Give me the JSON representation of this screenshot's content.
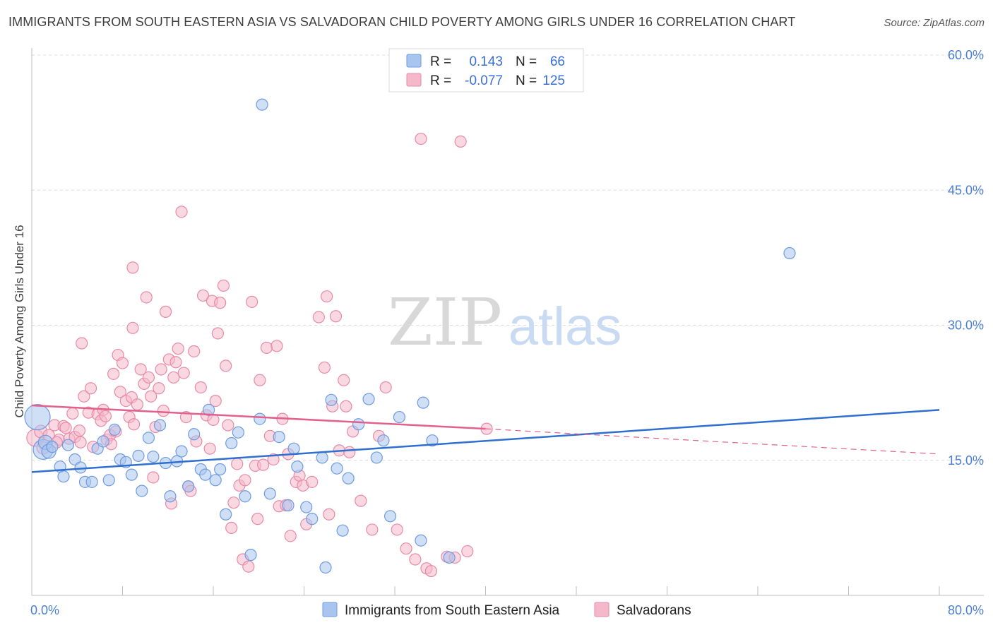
{
  "title": "IMMIGRANTS FROM SOUTH EASTERN ASIA VS SALVADORAN CHILD POVERTY AMONG GIRLS UNDER 16 CORRELATION CHART",
  "source": "Source: ZipAtlas.com",
  "watermark": {
    "zip": "ZIP",
    "atlas": "atlas"
  },
  "legend": {
    "rows": [
      {
        "r_label": "R =",
        "r_value": "0.143",
        "n_label": "N =",
        "n_value": "66",
        "color": "#a8c5ef",
        "stroke": "#6f9be0"
      },
      {
        "r_label": "R =",
        "r_value": "-0.077",
        "n_label": "N =",
        "n_value": "125",
        "color": "#f5b8cb",
        "stroke": "#e88aa8"
      }
    ]
  },
  "bottom_legend": {
    "items": [
      {
        "label": "Immigrants from South Eastern Asia",
        "color": "#a8c5ef",
        "stroke": "#6f9be0"
      },
      {
        "label": "Salvadorans",
        "color": "#f5b8cb",
        "stroke": "#e88aa8"
      }
    ]
  },
  "chart_data": {
    "type": "scatter",
    "title": "IMMIGRANTS FROM SOUTH EASTERN ASIA VS SALVADORAN CHILD POVERTY AMONG GIRLS UNDER 16 CORRELATION CHART",
    "xlabel": "",
    "ylabel": "Child Poverty Among Girls Under 16",
    "xlim": [
      0,
      80
    ],
    "ylim": [
      0,
      60
    ],
    "x_tick_labels": [
      "0.0%",
      "80.0%"
    ],
    "y_ticks": [
      15,
      30,
      45,
      60
    ],
    "y_tick_labels": [
      "15.0%",
      "30.0%",
      "45.0%",
      "60.0%"
    ],
    "grid": true,
    "legend_position": "top-center",
    "series": [
      {
        "name": "Immigrants from South Eastern Asia",
        "color": "#6f9be0",
        "fill": "#a8c5ef",
        "trend_color": "#2e6fd0",
        "trend": {
          "x": [
            0,
            80
          ],
          "y": [
            13.7,
            20.6
          ]
        },
        "points": [
          [
            0.5,
            19.8,
            18
          ],
          [
            1.0,
            16.2,
            14
          ],
          [
            1.2,
            17.0,
            10
          ],
          [
            1.5,
            16.0,
            10
          ],
          [
            2.5,
            14.3,
            8
          ],
          [
            2.8,
            13.2,
            8
          ],
          [
            3.2,
            16.7,
            8
          ],
          [
            3.8,
            15.1,
            8
          ],
          [
            4.3,
            14.2,
            8
          ],
          [
            4.7,
            12.6,
            8
          ],
          [
            5.3,
            12.6,
            8
          ],
          [
            5.8,
            16.3,
            8
          ],
          [
            6.3,
            17.1,
            8
          ],
          [
            6.8,
            12.8,
            8
          ],
          [
            7.3,
            18.4,
            8
          ],
          [
            7.8,
            15.1,
            8
          ],
          [
            8.3,
            14.8,
            8
          ],
          [
            8.8,
            13.4,
            8
          ],
          [
            9.4,
            15.5,
            8
          ],
          [
            9.7,
            11.6,
            8
          ],
          [
            10.3,
            17.5,
            8
          ],
          [
            10.7,
            15.4,
            8
          ],
          [
            11.3,
            18.9,
            8
          ],
          [
            11.8,
            14.7,
            8
          ],
          [
            12.2,
            11.0,
            8
          ],
          [
            12.8,
            14.9,
            8
          ],
          [
            13.2,
            16.0,
            8
          ],
          [
            13.8,
            12.1,
            8
          ],
          [
            14.3,
            17.9,
            8
          ],
          [
            14.9,
            14.0,
            8
          ],
          [
            15.3,
            13.4,
            8
          ],
          [
            15.6,
            20.6,
            8
          ],
          [
            16.2,
            12.8,
            8
          ],
          [
            16.6,
            14.0,
            8
          ],
          [
            17.1,
            9.0,
            8
          ],
          [
            17.6,
            16.9,
            8
          ],
          [
            18.2,
            18.1,
            8
          ],
          [
            18.8,
            11.0,
            8
          ],
          [
            19.3,
            4.5,
            8
          ],
          [
            20.3,
            54.5,
            8
          ],
          [
            20.1,
            19.6,
            8
          ],
          [
            21.0,
            11.3,
            8
          ],
          [
            21.8,
            17.6,
            8
          ],
          [
            22.6,
            10.0,
            8
          ],
          [
            23.1,
            16.3,
            8
          ],
          [
            23.4,
            14.3,
            8
          ],
          [
            24.2,
            9.8,
            8
          ],
          [
            24.7,
            8.5,
            8
          ],
          [
            25.6,
            15.3,
            8
          ],
          [
            25.9,
            3.1,
            8
          ],
          [
            26.4,
            21.7,
            8
          ],
          [
            26.9,
            14.1,
            8
          ],
          [
            27.4,
            7.2,
            8
          ],
          [
            27.9,
            13.0,
            8
          ],
          [
            28.8,
            19.0,
            8
          ],
          [
            29.7,
            21.8,
            8
          ],
          [
            30.4,
            15.3,
            8
          ],
          [
            31.0,
            17.2,
            8
          ],
          [
            31.6,
            8.8,
            8
          ],
          [
            32.4,
            19.8,
            8
          ],
          [
            34.3,
            6.1,
            8
          ],
          [
            34.5,
            21.4,
            8
          ],
          [
            35.3,
            17.2,
            8
          ],
          [
            36.8,
            4.2,
            8
          ],
          [
            66.8,
            38.0,
            8
          ],
          [
            1.8,
            16.5,
            8
          ]
        ]
      },
      {
        "name": "Salvadorans",
        "color": "#e88aa8",
        "fill": "#f5b8cb",
        "trend_color": "#e2608b",
        "trend": {
          "x": [
            0,
            40
          ],
          "y": [
            21.1,
            18.5
          ]
        },
        "trend_dashed": {
          "x": [
            40,
            80
          ],
          "y": [
            18.5,
            15.7
          ]
        },
        "points": [
          [
            0.3,
            17.5,
            12
          ],
          [
            0.8,
            18.2,
            9
          ],
          [
            1.0,
            16.4,
            9
          ],
          [
            1.5,
            17.8,
            8
          ],
          [
            2.0,
            18.9,
            8
          ],
          [
            2.4,
            17.3,
            8
          ],
          [
            2.8,
            18.8,
            8
          ],
          [
            3.0,
            18.6,
            8
          ],
          [
            3.3,
            17.4,
            8
          ],
          [
            3.8,
            17.6,
            8
          ],
          [
            4.3,
            17.0,
            8
          ],
          [
            4.6,
            22.1,
            8
          ],
          [
            4.4,
            28.0,
            8
          ],
          [
            5.0,
            20.3,
            8
          ],
          [
            5.2,
            23.0,
            8
          ],
          [
            5.4,
            16.5,
            8
          ],
          [
            5.8,
            20.1,
            8
          ],
          [
            6.1,
            19.4,
            8
          ],
          [
            6.3,
            20.6,
            8
          ],
          [
            6.6,
            17.3,
            8
          ],
          [
            6.9,
            17.8,
            8
          ],
          [
            7.2,
            24.6,
            8
          ],
          [
            7.4,
            18.2,
            8
          ],
          [
            7.6,
            26.7,
            8
          ],
          [
            7.8,
            22.6,
            8
          ],
          [
            8.0,
            25.8,
            8
          ],
          [
            8.3,
            21.6,
            8
          ],
          [
            8.6,
            19.8,
            8
          ],
          [
            8.8,
            22.0,
            8
          ],
          [
            8.9,
            36.4,
            8
          ],
          [
            8.9,
            29.7,
            8
          ],
          [
            9.3,
            21.2,
            8
          ],
          [
            9.6,
            25.1,
            8
          ],
          [
            9.9,
            23.5,
            8
          ],
          [
            10.1,
            33.1,
            8
          ],
          [
            10.3,
            24.2,
            8
          ],
          [
            10.5,
            22.1,
            8
          ],
          [
            10.7,
            13.1,
            8
          ],
          [
            10.9,
            18.7,
            8
          ],
          [
            11.2,
            23.0,
            8
          ],
          [
            11.4,
            25.1,
            8
          ],
          [
            11.6,
            20.5,
            8
          ],
          [
            11.8,
            31.5,
            8
          ],
          [
            12.1,
            26.2,
            8
          ],
          [
            12.3,
            10.2,
            8
          ],
          [
            12.5,
            24.2,
            8
          ],
          [
            12.7,
            25.9,
            8
          ],
          [
            12.9,
            27.4,
            8
          ],
          [
            13.2,
            42.6,
            8
          ],
          [
            13.4,
            24.7,
            8
          ],
          [
            13.6,
            19.8,
            8
          ],
          [
            13.8,
            12.1,
            8
          ],
          [
            14.0,
            11.6,
            8
          ],
          [
            14.3,
            27.1,
            8
          ],
          [
            14.5,
            17.1,
            8
          ],
          [
            14.9,
            23.1,
            8
          ],
          [
            15.1,
            33.3,
            8
          ],
          [
            15.4,
            20.0,
            8
          ],
          [
            15.7,
            16.3,
            8
          ],
          [
            15.9,
            32.7,
            8
          ],
          [
            16.2,
            21.6,
            8
          ],
          [
            16.4,
            29.1,
            8
          ],
          [
            16.6,
            32.5,
            8
          ],
          [
            16.9,
            34.4,
            8
          ],
          [
            17.1,
            25.5,
            8
          ],
          [
            17.3,
            18.9,
            8
          ],
          [
            17.6,
            7.5,
            8
          ],
          [
            17.8,
            10.3,
            8
          ],
          [
            18.1,
            14.6,
            8
          ],
          [
            18.3,
            12.2,
            8
          ],
          [
            18.6,
            4.0,
            8
          ],
          [
            18.8,
            12.8,
            8
          ],
          [
            19.1,
            3.2,
            8
          ],
          [
            19.4,
            32.6,
            8
          ],
          [
            19.7,
            14.4,
            8
          ],
          [
            19.9,
            8.5,
            8
          ],
          [
            20.1,
            23.9,
            8
          ],
          [
            20.4,
            14.5,
            8
          ],
          [
            20.7,
            27.5,
            8
          ],
          [
            21.0,
            17.7,
            8
          ],
          [
            21.3,
            15.1,
            8
          ],
          [
            21.6,
            27.7,
            8
          ],
          [
            21.8,
            9.9,
            8
          ],
          [
            22.1,
            19.6,
            8
          ],
          [
            22.4,
            10.0,
            8
          ],
          [
            22.6,
            15.7,
            8
          ],
          [
            22.8,
            6.6,
            8
          ],
          [
            23.3,
            12.6,
            8
          ],
          [
            23.6,
            13.3,
            8
          ],
          [
            23.9,
            12.2,
            8
          ],
          [
            24.2,
            7.9,
            8
          ],
          [
            24.7,
            12.6,
            8
          ],
          [
            25.3,
            30.9,
            8
          ],
          [
            25.8,
            25.3,
            8
          ],
          [
            26.0,
            33.2,
            8
          ],
          [
            26.2,
            9.0,
            8
          ],
          [
            26.5,
            21.0,
            8
          ],
          [
            26.8,
            31.0,
            8
          ],
          [
            27.1,
            16.1,
            8
          ],
          [
            27.5,
            23.9,
            8
          ],
          [
            27.7,
            21.0,
            8
          ],
          [
            28.0,
            15.9,
            8
          ],
          [
            28.3,
            18.2,
            8
          ],
          [
            29.0,
            10.5,
            8
          ],
          [
            30.0,
            7.3,
            8
          ],
          [
            30.6,
            17.7,
            8
          ],
          [
            31.2,
            23.1,
            8
          ],
          [
            32.2,
            7.3,
            8
          ],
          [
            33.0,
            5.2,
            8
          ],
          [
            33.8,
            4.0,
            8
          ],
          [
            34.3,
            50.7,
            8
          ],
          [
            34.8,
            3.0,
            8
          ],
          [
            35.2,
            2.7,
            8
          ],
          [
            36.6,
            4.3,
            8
          ],
          [
            37.3,
            4.2,
            8
          ],
          [
            37.8,
            50.4,
            8
          ],
          [
            38.4,
            4.9,
            8
          ],
          [
            40.1,
            18.5,
            8
          ],
          [
            4.2,
            18.3,
            8
          ],
          [
            3.6,
            20.2,
            8
          ],
          [
            2.2,
            17.0,
            8
          ],
          [
            9.0,
            19.0,
            8
          ],
          [
            7.0,
            16.8,
            8
          ],
          [
            6.5,
            19.9,
            8
          ],
          [
            16.0,
            19.5,
            8
          ]
        ]
      }
    ]
  }
}
